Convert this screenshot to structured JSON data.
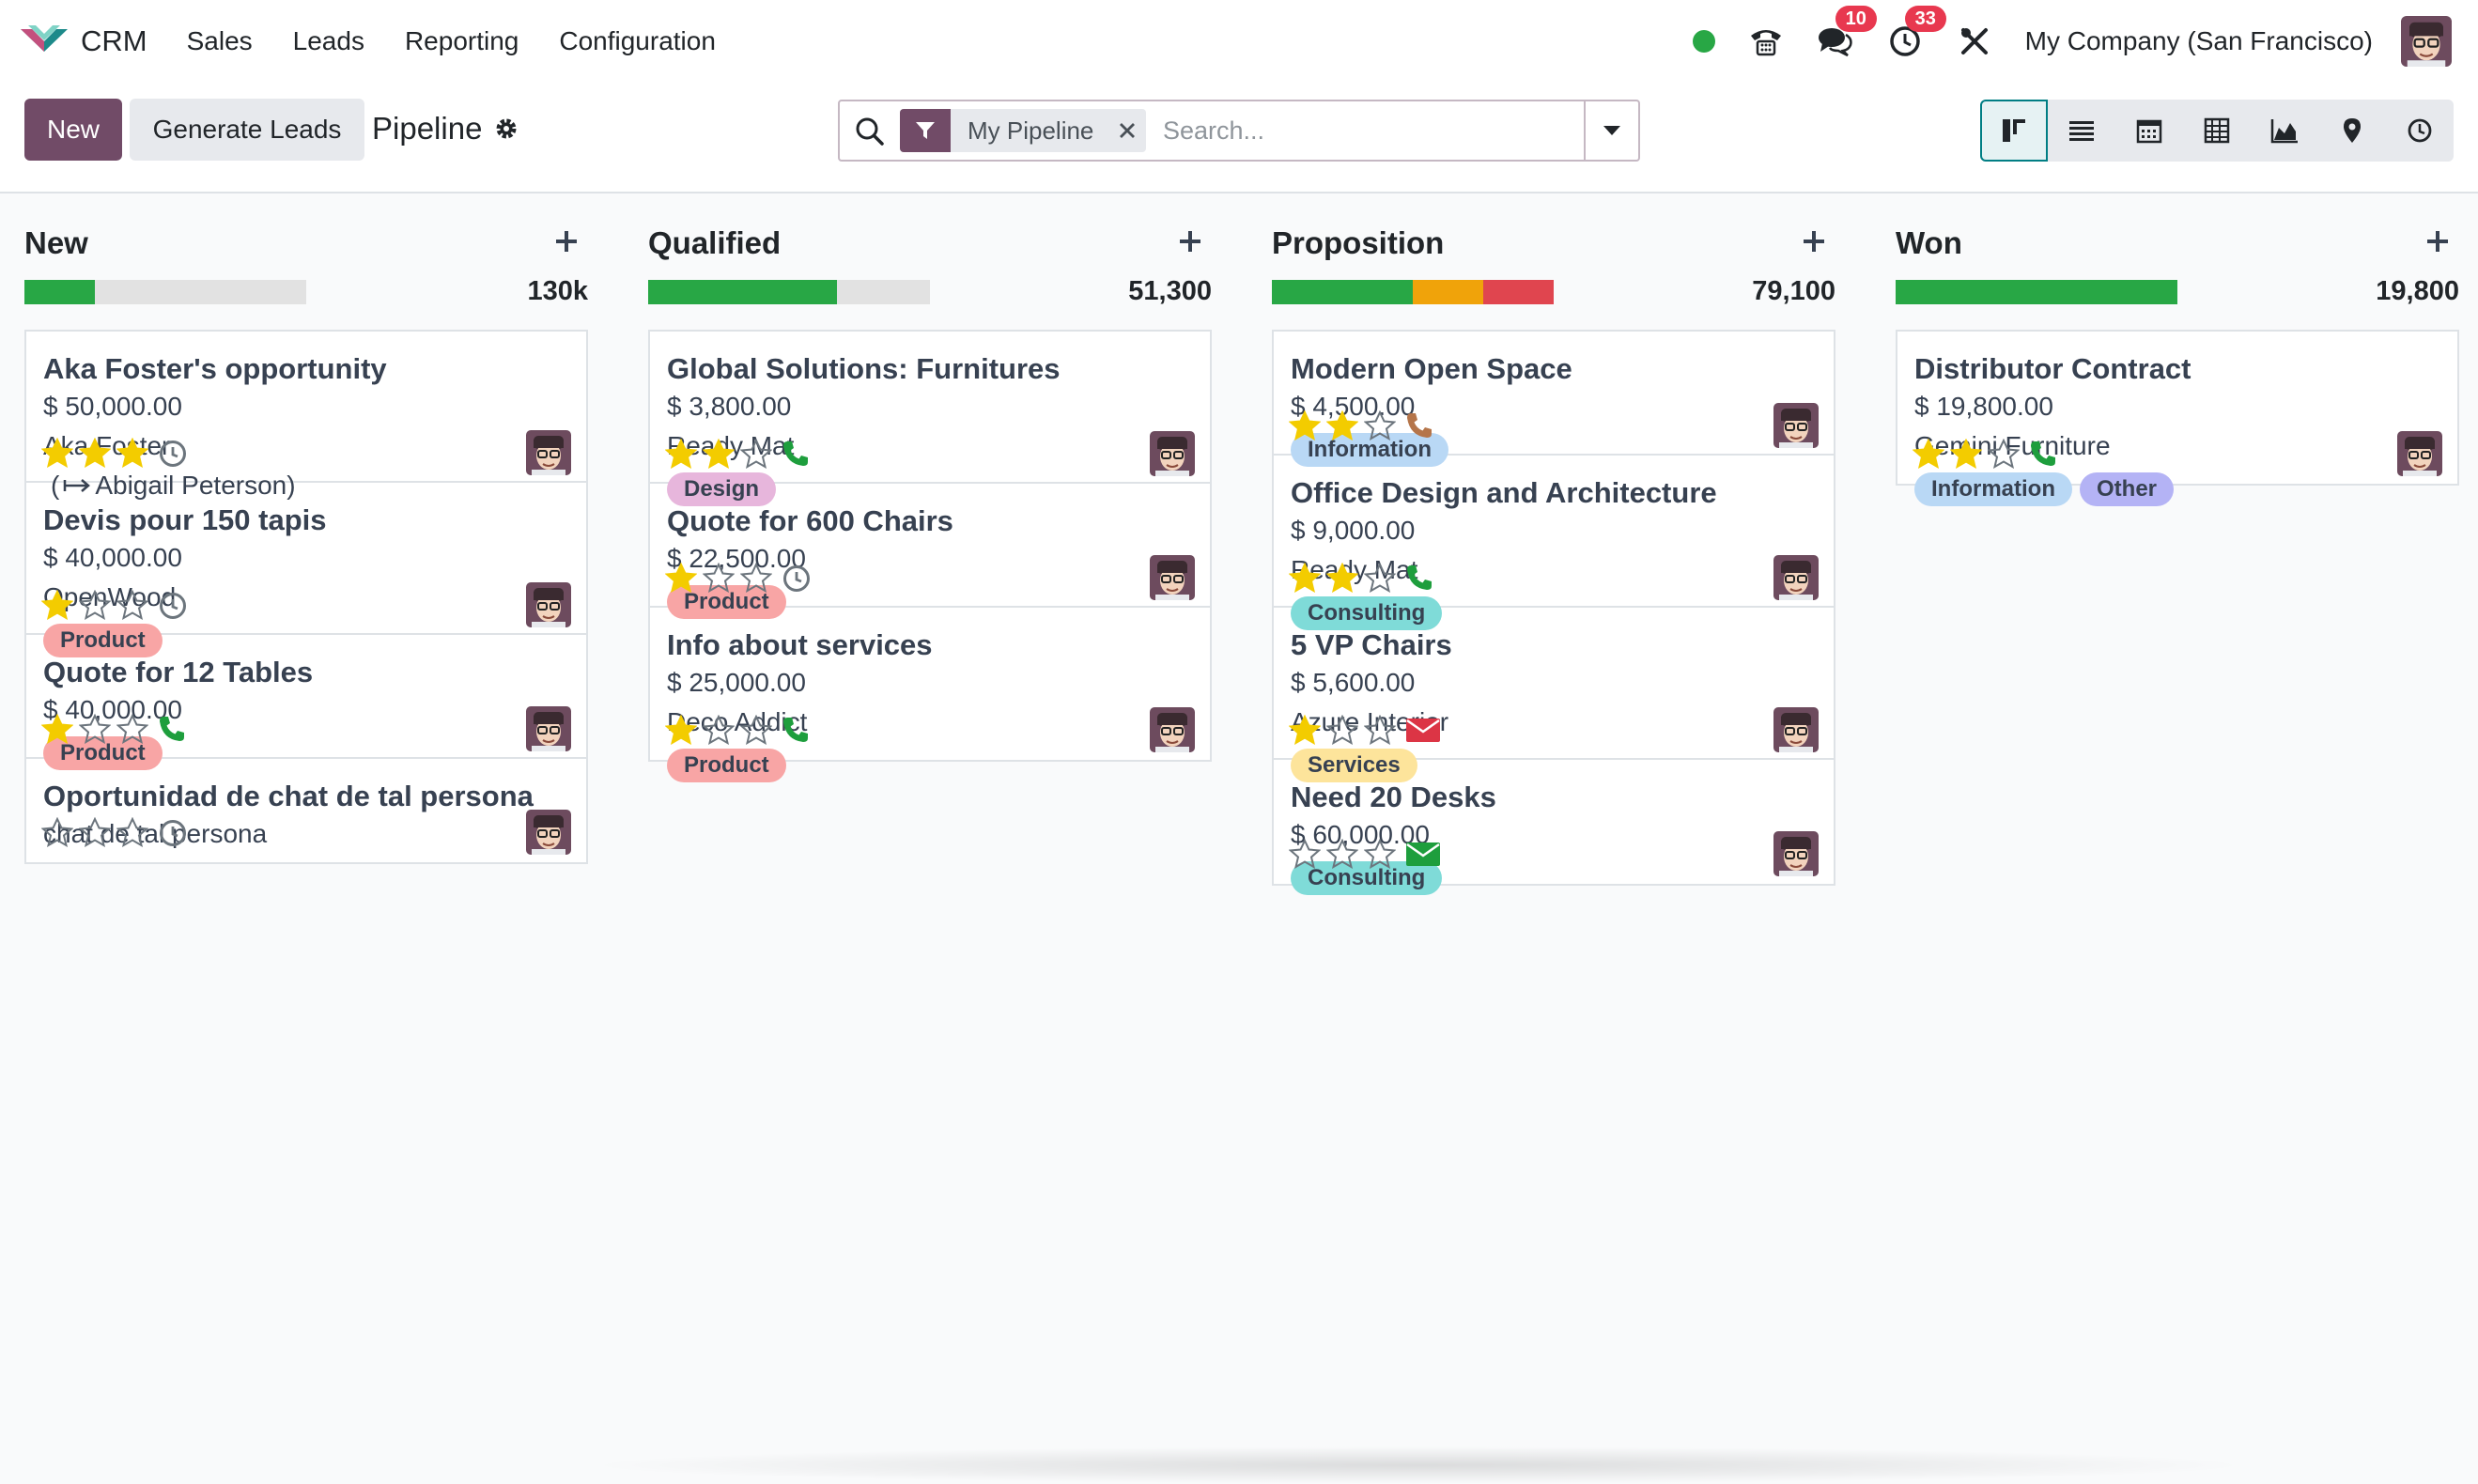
{
  "nav": {
    "app_name": "CRM",
    "menu": [
      "Sales",
      "Leads",
      "Reporting",
      "Configuration"
    ],
    "messages_badge": "10",
    "activities_badge": "33",
    "company": "My Company (San Francisco)"
  },
  "control": {
    "new_label": "New",
    "generate_label": "Generate Leads",
    "breadcrumb": "Pipeline",
    "facet_label": "My Pipeline",
    "search_placeholder": "Search...",
    "views": [
      "kanban-icon",
      "list-icon",
      "calendar-icon",
      "pivot-icon",
      "graph-icon",
      "map-pin-icon",
      "activity-clock-icon"
    ],
    "active_view": "kanban-icon"
  },
  "colors": {
    "primary": "#714b67",
    "progress_green": "#28a745",
    "progress_orange": "#f0a30a",
    "progress_red": "#e0454f",
    "star": "#f3cc00",
    "phone_green": "#1e9e3d",
    "mail_red": "#dc3545",
    "mail_green": "#1e9e3d",
    "phone_brown": "#b5754a"
  },
  "columns": [
    {
      "title": "New",
      "total": "130k",
      "progress": {
        "green": 0.25,
        "orange": 0,
        "red": 0
      },
      "cards": [
        {
          "title": "Aka Foster's opportunity",
          "amount": "$ 50,000.00",
          "partner": "Aka Foster",
          "contact": "Abigail Peterson",
          "tags": [],
          "stars": 3,
          "activity": "clock",
          "height": 161
        },
        {
          "title": "Devis pour 150 tapis",
          "amount": "$ 40,000.00",
          "partner": "OpenWood",
          "tags": [
            {
              "label": "Product",
              "color": "#f8a5a5"
            }
          ],
          "stars": 1,
          "activity": "clock",
          "height": 162
        },
        {
          "title": "Quote for 12 Tables",
          "amount": "$ 40,000.00",
          "partner": "",
          "tags": [
            {
              "label": "Product",
              "color": "#f8a5a5"
            }
          ],
          "stars": 1,
          "activity": "phone",
          "height": 132
        },
        {
          "title": "Oportunidad de chat de tal persona",
          "amount": "",
          "partner": "chat de tal persona",
          "tags": [],
          "stars": 0,
          "activity": "clock",
          "height": 110
        }
      ]
    },
    {
      "title": "Qualified",
      "total": "51,300",
      "progress": {
        "green": 0.67,
        "orange": 0,
        "red": 0
      },
      "cards": [
        {
          "title": "Global Solutions: Furnitures",
          "amount": "$ 3,800.00",
          "partner": "Ready Mat",
          "tags": [
            {
              "label": "Design",
              "color": "#e7b6dc"
            }
          ],
          "stars": 2,
          "activity": "phone",
          "height": 162
        },
        {
          "title": "Quote for 600 Chairs",
          "amount": "$ 22,500.00",
          "partner": "",
          "tags": [
            {
              "label": "Product",
              "color": "#f8a5a5"
            }
          ],
          "stars": 1,
          "activity": "clock",
          "height": 132
        },
        {
          "title": "Info about services",
          "amount": "$ 25,000.00",
          "partner": "Deco Addict",
          "tags": [
            {
              "label": "Product",
              "color": "#f8a5a5"
            }
          ],
          "stars": 1,
          "activity": "phone",
          "height": 162
        }
      ]
    },
    {
      "title": "Proposition",
      "total": "79,100",
      "progress": {
        "green": 0.5,
        "orange": 0.25,
        "red": 0.25
      },
      "cards": [
        {
          "title": "Modern Open Space",
          "amount": "$ 4,500.00",
          "partner": "",
          "tags": [
            {
              "label": "Information",
              "color": "#b9d8f5"
            }
          ],
          "stars": 2,
          "activity": "phone-brown",
          "height": 132
        },
        {
          "title": "Office Design and Architecture",
          "amount": "$ 9,000.00",
          "partner": "Ready Mat",
          "tags": [
            {
              "label": "Consulting",
              "color": "#7fdbd8"
            }
          ],
          "stars": 2,
          "activity": "phone",
          "height": 162
        },
        {
          "title": "5 VP Chairs",
          "amount": "$ 5,600.00",
          "partner": "Azure Interior",
          "tags": [
            {
              "label": "Services",
              "color": "#fde49b"
            }
          ],
          "stars": 1,
          "activity": "mail-red",
          "height": 162
        },
        {
          "title": "Need 20 Desks",
          "amount": "$ 60,000.00",
          "partner": "",
          "tags": [
            {
              "label": "Consulting",
              "color": "#7fdbd8"
            }
          ],
          "stars": 0,
          "activity": "mail-green",
          "height": 132
        }
      ]
    },
    {
      "title": "Won",
      "total": "19,800",
      "progress": {
        "green": 1,
        "orange": 0,
        "red": 0
      },
      "cards": [
        {
          "title": "Distributor Contract",
          "amount": "$ 19,800.00",
          "partner": "Gemini Furniture",
          "tags": [
            {
              "label": "Information",
              "color": "#b9d8f5"
            },
            {
              "label": "Other",
              "color": "#b4b3f5"
            }
          ],
          "stars": 2,
          "activity": "phone",
          "height": 162
        }
      ]
    }
  ]
}
